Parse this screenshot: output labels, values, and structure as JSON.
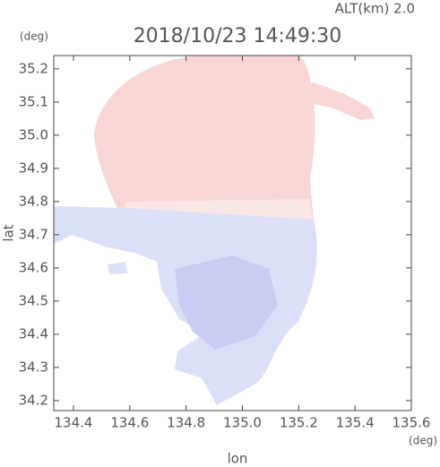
{
  "chart_data": {
    "type": "map",
    "title": "2018/10/23 14:49:30",
    "subtitle": "ALT(km) 2.0",
    "ylabel": "lat",
    "xlabel": "lon",
    "yunit": "(deg)",
    "xunit": "(deg)",
    "xlim": [
      134.33,
      135.6
    ],
    "ylim": [
      34.17,
      35.24
    ],
    "xticks": [
      134.4,
      134.6,
      134.8,
      {
        "value": 135,
        "label": "135.0"
      },
      135.2,
      135.4,
      135.6
    ],
    "yticks": [
      34.2,
      34.3,
      34.4,
      34.5,
      34.6,
      34.7,
      34.8,
      34.9,
      {
        "value": 35,
        "label": "35.0"
      },
      35.1,
      35.2
    ]
  }
}
